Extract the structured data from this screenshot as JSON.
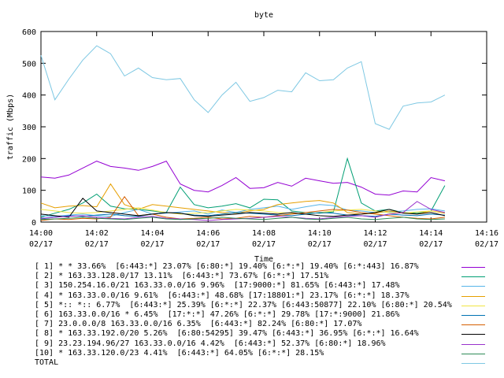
{
  "chart_data": {
    "type": "line",
    "title": "byte",
    "xlabel": "Time",
    "ylabel": "traffic (Mbps)",
    "ylim": [
      0,
      600
    ],
    "yticks": [
      "0",
      "100",
      "200",
      "300",
      "400",
      "500",
      "600"
    ],
    "xticks": [
      {
        "time": "14:00",
        "date": "02/17"
      },
      {
        "time": "14:02",
        "date": "02/17"
      },
      {
        "time": "14:04",
        "date": "02/17"
      },
      {
        "time": "14:06",
        "date": "02/17"
      },
      {
        "time": "14:08",
        "date": "02/17"
      },
      {
        "time": "14:10",
        "date": "02/17"
      },
      {
        "time": "14:12",
        "date": "02/17"
      },
      {
        "time": "14:14",
        "date": "02/17"
      },
      {
        "time": "14:16",
        "date": "02/17"
      }
    ],
    "x_minutes": [
      0,
      0.5,
      1,
      1.5,
      2,
      2.5,
      3,
      3.5,
      4,
      4.5,
      5,
      5.5,
      6,
      6.5,
      7,
      7.5,
      8,
      8.5,
      9,
      9.5,
      10,
      10.5,
      11,
      11.5,
      12,
      12.5,
      13,
      13.5,
      14,
      14.5
    ],
    "series": [
      {
        "name": "[ 1] * * 33.66%  [6:443:*] 23.07% [6:80:*] 19.40% [6:*:*] 19.40% [6:*:443] 16.87%",
        "color": "#9400d3",
        "values": [
          142,
          138,
          148,
          170,
          192,
          175,
          170,
          163,
          175,
          192,
          120,
          100,
          95,
          115,
          140,
          106,
          108,
          125,
          113,
          138,
          130,
          122,
          125,
          110,
          88,
          85,
          98,
          95,
          140,
          130
        ]
      },
      {
        "name": "[ 2] * 163.33.128.0/17 13.11%  [6:443:*] 73.67% [6:*:*] 17.51%",
        "color": "#009e73",
        "values": [
          15,
          28,
          40,
          60,
          88,
          50,
          42,
          40,
          35,
          30,
          110,
          55,
          45,
          50,
          58,
          45,
          72,
          70,
          35,
          30,
          28,
          32,
          200,
          60,
          35,
          40,
          30,
          28,
          35,
          115
        ]
      },
      {
        "name": "[ 3] 150.254.16.0/21 163.33.0.0/16 9.96%  [17:9000:*] 81.65% [6:443:*] 17.48%",
        "color": "#56b4e9",
        "values": [
          20,
          18,
          22,
          25,
          20,
          18,
          30,
          40,
          25,
          28,
          32,
          35,
          25,
          38,
          30,
          40,
          45,
          50,
          40,
          48,
          55,
          52,
          38,
          35,
          30,
          32,
          35,
          40,
          42,
          35
        ]
      },
      {
        "name": "[ 4] * 163.33.0.0/16 9.61%  [6:443:*] 48.68% [17:18801:*] 23.17% [6:*:*] 18.37%",
        "color": "#e69f00",
        "values": [
          60,
          45,
          50,
          52,
          48,
          120,
          55,
          40,
          55,
          50,
          45,
          40,
          35,
          30,
          28,
          35,
          40,
          55,
          60,
          65,
          68,
          60,
          30,
          25,
          28,
          35,
          30,
          25,
          35,
          28
        ]
      },
      {
        "name": "[ 5] *:: *:: 6.77%  [6:443:*] 25.39% [6:*:*] 22.37% [6:443:50877] 22.10% [6:80:*] 20.54%",
        "color": "#f0e442",
        "values": [
          40,
          35,
          30,
          28,
          30,
          35,
          40,
          45,
          38,
          30,
          25,
          28,
          30,
          35,
          40,
          38,
          35,
          30,
          28,
          25,
          30,
          35,
          38,
          40,
          35,
          30,
          28,
          32,
          35,
          30
        ]
      },
      {
        "name": "[ 6] 163.33.0.0/16 * 6.45%  [17:*:*] 47.26% [6:*:*] 29.78% [17:*:9000] 21.86%",
        "color": "#0072b2",
        "values": [
          10,
          15,
          20,
          18,
          22,
          25,
          20,
          18,
          25,
          30,
          28,
          22,
          20,
          25,
          30,
          28,
          25,
          22,
          20,
          25,
          30,
          28,
          22,
          20,
          18,
          25,
          22,
          20,
          25,
          22
        ]
      },
      {
        "name": "[ 7] 23.0.0.0/8 163.33.0.0/16 6.35%  [6:443:*] 82.24% [6:80:*] 17.07%",
        "color": "#d55e00",
        "values": [
          5,
          10,
          8,
          12,
          10,
          15,
          80,
          20,
          25,
          15,
          10,
          12,
          15,
          10,
          12,
          18,
          15,
          20,
          25,
          30,
          35,
          40,
          38,
          30,
          25,
          20,
          15,
          12,
          10,
          15
        ]
      },
      {
        "name": "[ 8] * 163.33.192.0/20 5.26%  [6:80:54295] 39.47% [6:443:*] 36.95% [6:*:*] 16.64%",
        "color": "#000000",
        "values": [
          25,
          20,
          15,
          75,
          35,
          30,
          25,
          20,
          25,
          30,
          28,
          20,
          18,
          22,
          25,
          30,
          28,
          25,
          30,
          25,
          20,
          18,
          22,
          25,
          30,
          40,
          28,
          25,
          30,
          20
        ]
      },
      {
        "name": "[ 9] 23.23.194.96/27 163.33.0.0/16 4.42%  [6:443:*] 52.37% [6:80:*] 18.96%",
        "color": "#9932cc",
        "values": [
          12,
          15,
          18,
          20,
          15,
          12,
          10,
          15,
          18,
          12,
          10,
          8,
          5,
          8,
          10,
          12,
          15,
          18,
          15,
          12,
          10,
          15,
          18,
          20,
          15,
          25,
          30,
          65,
          40,
          30
        ]
      },
      {
        "name": "[10] * 163.33.120.0/23 4.41%  [6:443:*] 64.05% [6:*:*] 28.15%",
        "color": "#2e8b57",
        "values": [
          8,
          10,
          12,
          15,
          12,
          10,
          8,
          12,
          15,
          10,
          8,
          10,
          12,
          15,
          12,
          10,
          8,
          12,
          15,
          10,
          8,
          12,
          15,
          10,
          8,
          12,
          15,
          10,
          8,
          10
        ]
      },
      {
        "name": "TOTAL",
        "color": "#7ec8e3",
        "values": [
          525,
          385,
          450,
          510,
          555,
          530,
          460,
          485,
          455,
          448,
          452,
          385,
          345,
          400,
          440,
          380,
          392,
          415,
          410,
          470,
          445,
          448,
          485,
          505,
          310,
          292,
          365,
          375,
          378,
          400
        ]
      }
    ]
  }
}
